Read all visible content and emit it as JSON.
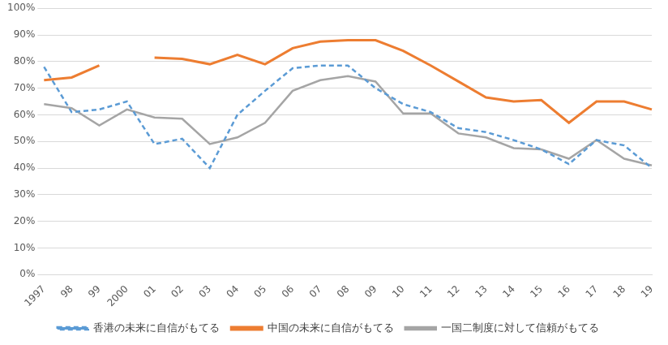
{
  "chart_data": {
    "type": "line",
    "categories": [
      "1997",
      "98",
      "99",
      "2000",
      "01",
      "02",
      "03",
      "04",
      "05",
      "06",
      "07",
      "08",
      "09",
      "10",
      "11",
      "12",
      "13",
      "14",
      "15",
      "16",
      "17",
      "18",
      "19"
    ],
    "series": [
      {
        "name": "香港の未来に自信がもてる",
        "color": "#5b9bd5",
        "line_style": "dashed",
        "values": [
          78,
          61,
          62,
          65,
          49,
          51,
          40,
          60,
          69,
          77.5,
          78.5,
          78.5,
          70,
          64,
          61,
          55,
          53.5,
          50.5,
          47,
          41.5,
          50.5,
          48.5,
          40
        ]
      },
      {
        "name": "中国の未来に自信がもてる",
        "color": "#ed7d31",
        "line_style": "solid",
        "values": [
          73,
          74,
          78.5,
          null,
          81.5,
          81,
          79,
          82.5,
          79,
          85,
          87.5,
          88,
          88,
          84,
          78.5,
          72.5,
          66.5,
          65,
          65.5,
          57,
          65,
          65,
          62
        ]
      },
      {
        "name": "一国二制度に対して信頼がもてる",
        "color": "#a5a5a5",
        "line_style": "solid",
        "values": [
          64,
          62.5,
          56,
          62,
          59,
          58.5,
          49,
          51.5,
          57,
          69,
          73,
          74.5,
          72.5,
          60.5,
          60.5,
          53,
          51.5,
          47.5,
          47,
          43.5,
          50.5,
          43.5,
          41
        ]
      }
    ],
    "ylim": [
      0,
      100
    ],
    "yticks": [
      {
        "value": 0,
        "label": "0%"
      },
      {
        "value": 10,
        "label": "10%"
      },
      {
        "value": 20,
        "label": "20%"
      },
      {
        "value": 30,
        "label": "30%"
      },
      {
        "value": 40,
        "label": "40%"
      },
      {
        "value": 50,
        "label": "50%"
      },
      {
        "value": 60,
        "label": "60%"
      },
      {
        "value": 70,
        "label": "70%"
      },
      {
        "value": 80,
        "label": "80%"
      },
      {
        "value": 90,
        "label": "90%"
      },
      {
        "value": 100,
        "label": "100%"
      }
    ],
    "grid": true,
    "legend": "bottom"
  }
}
